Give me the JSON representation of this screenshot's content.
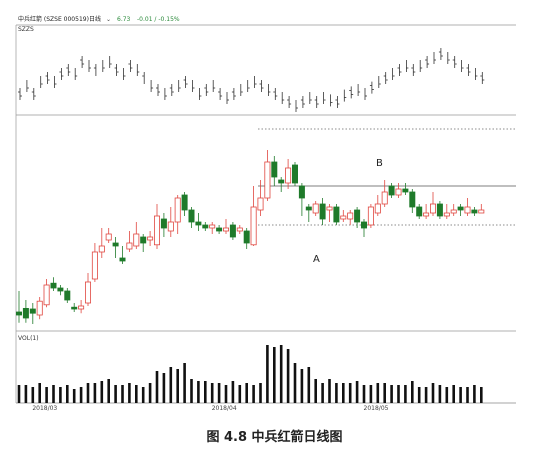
{
  "header": {
    "stock_label": "中兵红箭 (SZSE 000519)",
    "period": "日线",
    "price": "6.73",
    "change": "-0.01 / -0.15%"
  },
  "caption": "图 4.8  中兵红箭日线图",
  "chart_data": {
    "type": "candlestick",
    "title": "",
    "panels": {
      "sz": {
        "label": "SZZS",
        "bars": [
          [
            1,
            0,
            1,
            1
          ],
          [
            0,
            1,
            1,
            0
          ],
          [
            1,
            0,
            1,
            0
          ],
          [
            0,
            1,
            1,
            0
          ],
          [
            1,
            0,
            1,
            0
          ],
          [
            0,
            1,
            1,
            0
          ],
          [
            1,
            0,
            1,
            0
          ],
          [
            1,
            0,
            1,
            1
          ],
          [
            0,
            1,
            1,
            0
          ],
          [
            1,
            0,
            1,
            1
          ],
          [
            0,
            0,
            1,
            1
          ],
          [
            1,
            0,
            0,
            1
          ],
          [
            0,
            1,
            1,
            0
          ],
          [
            0,
            1,
            1,
            0
          ],
          [
            1,
            0,
            1,
            0
          ],
          [
            0,
            1,
            1,
            0
          ],
          [
            1,
            0,
            1,
            1
          ],
          [
            0,
            0,
            1,
            1
          ],
          [
            1,
            0,
            0,
            0
          ],
          [
            0,
            1,
            1,
            0
          ],
          [
            1,
            0,
            1,
            0
          ],
          [
            0,
            1,
            1,
            0
          ],
          [
            1,
            0,
            1,
            0
          ],
          [
            0,
            1,
            1,
            0
          ],
          [
            1,
            0,
            1,
            1
          ],
          [
            0,
            0,
            1,
            1
          ],
          [
            0,
            1,
            1,
            0
          ],
          [
            1,
            0,
            1,
            0
          ],
          [
            0,
            1,
            1,
            0
          ],
          [
            1,
            0,
            1,
            0
          ],
          [
            0,
            1,
            1,
            0
          ],
          [
            1,
            0,
            1,
            1
          ],
          [
            0,
            0,
            1,
            1
          ],
          [
            0,
            1,
            1,
            0
          ],
          [
            0,
            1,
            1,
            0
          ],
          [
            1,
            0,
            1,
            0
          ],
          [
            0,
            1,
            1,
            0
          ],
          [
            1,
            0,
            1,
            1
          ],
          [
            0,
            0,
            1,
            1
          ],
          [
            1,
            0,
            1,
            0
          ],
          [
            0,
            1,
            1,
            0
          ],
          [
            1,
            0,
            1,
            0
          ],
          [
            0,
            1,
            1,
            0
          ],
          [
            1,
            0,
            1,
            0
          ],
          [
            0,
            1,
            1,
            1
          ],
          [
            0,
            0,
            1,
            1
          ],
          [
            1,
            0,
            1,
            0
          ],
          [
            0,
            1,
            1,
            0
          ],
          [
            1,
            0,
            1,
            0
          ],
          [
            0,
            1,
            1,
            1
          ],
          [
            0,
            0,
            1,
            1
          ],
          [
            1,
            0,
            1,
            0
          ],
          [
            0,
            1,
            1,
            0
          ],
          [
            1,
            0,
            1,
            0
          ],
          [
            0,
            1,
            1,
            0
          ],
          [
            1,
            0,
            1,
            0
          ],
          [
            0,
            1,
            1,
            0
          ],
          [
            1,
            0,
            1,
            1
          ],
          [
            0,
            0,
            1,
            1
          ],
          [
            1,
            0,
            1,
            0
          ],
          [
            0,
            1,
            1,
            0
          ],
          [
            1,
            0,
            1,
            0
          ],
          [
            0,
            1,
            1,
            0
          ],
          [
            1,
            0,
            1,
            0
          ],
          [
            0,
            1,
            1,
            0
          ],
          [
            1,
            0,
            1,
            0
          ],
          [
            0,
            1,
            1,
            0
          ],
          [
            1,
            0,
            1,
            0
          ]
        ]
      },
      "candles": {
        "annotations": [
          {
            "text": "A"
          },
          {
            "text": "B"
          }
        ],
        "levels": {
          "top_dotted": 7.85,
          "resistance_solid": 6.9,
          "support_dotted": 6.25
        },
        "ylim": [
          4.5,
          8.0
        ],
        "ohlc": [
          [
            4.8,
            4.75,
            5.15,
            4.62
          ],
          [
            4.86,
            4.7,
            5.0,
            4.62
          ],
          [
            4.85,
            4.78,
            4.95,
            4.6
          ],
          [
            4.75,
            4.98,
            5.05,
            4.68
          ],
          [
            4.92,
            5.25,
            5.35,
            4.88
          ],
          [
            5.28,
            5.2,
            5.38,
            5.15
          ],
          [
            5.2,
            5.15,
            5.25,
            5.08
          ],
          [
            5.15,
            5.0,
            5.2,
            4.95
          ],
          [
            4.88,
            4.85,
            4.95,
            4.8
          ],
          [
            4.85,
            4.9,
            5.0,
            4.78
          ],
          [
            4.95,
            5.3,
            5.45,
            4.9
          ],
          [
            5.35,
            5.8,
            5.95,
            5.3
          ],
          [
            5.8,
            5.9,
            6.2,
            5.7
          ],
          [
            6.0,
            6.1,
            6.2,
            5.95
          ],
          [
            5.95,
            5.9,
            6.05,
            5.7
          ],
          [
            5.7,
            5.65,
            5.9,
            5.6
          ],
          [
            5.85,
            5.95,
            6.15,
            5.8
          ],
          [
            5.9,
            6.1,
            6.3,
            5.85
          ],
          [
            6.05,
            5.95,
            6.1,
            5.8
          ],
          [
            6.0,
            6.05,
            6.15,
            5.9
          ],
          [
            5.92,
            6.4,
            6.6,
            5.85
          ],
          [
            6.35,
            6.2,
            6.45,
            6.05
          ],
          [
            6.15,
            6.3,
            6.55,
            6.05
          ],
          [
            6.3,
            6.7,
            6.75,
            6.1
          ],
          [
            6.75,
            6.5,
            6.8,
            6.4
          ],
          [
            6.5,
            6.3,
            6.55,
            6.2
          ],
          [
            6.3,
            6.25,
            6.45,
            6.15
          ],
          [
            6.25,
            6.2,
            6.3,
            6.15
          ],
          [
            6.2,
            6.25,
            6.3,
            6.1
          ],
          [
            6.2,
            6.15,
            6.25,
            6.1
          ],
          [
            6.15,
            6.2,
            6.35,
            6.1
          ],
          [
            6.25,
            6.05,
            6.3,
            6.0
          ],
          [
            6.15,
            6.2,
            6.25,
            6.1
          ],
          [
            6.15,
            5.95,
            6.2,
            5.85
          ],
          [
            5.92,
            6.55,
            6.9,
            5.9
          ],
          [
            6.5,
            6.7,
            7.0,
            6.4
          ],
          [
            6.7,
            7.3,
            7.5,
            6.65
          ],
          [
            7.3,
            7.05,
            7.4,
            6.9
          ],
          [
            7.0,
            6.95,
            7.05,
            6.8
          ],
          [
            6.95,
            7.2,
            7.35,
            6.85
          ],
          [
            7.25,
            6.95,
            7.3,
            6.9
          ],
          [
            6.9,
            6.7,
            6.95,
            6.4
          ],
          [
            6.55,
            6.5,
            6.6,
            6.3
          ],
          [
            6.45,
            6.6,
            6.65,
            6.4
          ],
          [
            6.6,
            6.35,
            6.7,
            6.25
          ],
          [
            6.5,
            6.55,
            6.6,
            6.3
          ],
          [
            6.55,
            6.3,
            6.6,
            6.25
          ],
          [
            6.35,
            6.4,
            6.5,
            6.3
          ],
          [
            6.35,
            6.45,
            6.5,
            6.25
          ],
          [
            6.5,
            6.3,
            6.55,
            6.2
          ],
          [
            6.3,
            6.2,
            6.35,
            6.05
          ],
          [
            6.25,
            6.55,
            6.6,
            6.2
          ],
          [
            6.45,
            6.6,
            6.75,
            6.4
          ],
          [
            6.6,
            6.8,
            7.0,
            6.55
          ],
          [
            6.9,
            6.75,
            6.95,
            6.7
          ],
          [
            6.75,
            6.85,
            6.95,
            6.7
          ],
          [
            6.85,
            6.8,
            6.95,
            6.75
          ],
          [
            6.8,
            6.55,
            6.85,
            6.45
          ],
          [
            6.55,
            6.4,
            6.6,
            6.35
          ],
          [
            6.4,
            6.45,
            6.6,
            6.35
          ],
          [
            6.45,
            6.6,
            6.8,
            6.4
          ],
          [
            6.6,
            6.4,
            6.65,
            6.35
          ],
          [
            6.4,
            6.45,
            6.6,
            6.35
          ],
          [
            6.45,
            6.5,
            6.6,
            6.4
          ],
          [
            6.55,
            6.5,
            6.6,
            6.4
          ],
          [
            6.45,
            6.55,
            6.7,
            6.4
          ],
          [
            6.5,
            6.45,
            6.55,
            6.4
          ],
          [
            6.45,
            6.5,
            6.6,
            6.45
          ]
        ]
      },
      "volume": {
        "label": "VOL(1)",
        "values": [
          9,
          9,
          8,
          10,
          8,
          9,
          8,
          9,
          7,
          8,
          10,
          10,
          11,
          12,
          9,
          9,
          10,
          9,
          8,
          10,
          16,
          15,
          18,
          17,
          20,
          12,
          11,
          11,
          10,
          10,
          9,
          11,
          9,
          10,
          9,
          10,
          29,
          28,
          29,
          27,
          20,
          17,
          18,
          12,
          10,
          12,
          10,
          10,
          10,
          11,
          9,
          9,
          10,
          10,
          9,
          9,
          9,
          11,
          8,
          8,
          10,
          9,
          8,
          9,
          8,
          8,
          9,
          8
        ]
      }
    },
    "x_ticks": [
      {
        "index": 2,
        "label": "2018/03"
      },
      {
        "index": 28,
        "label": "2018/04"
      },
      {
        "index": 50,
        "label": "2018/05"
      }
    ],
    "colors": {
      "up": "#e0463f",
      "down": "#1f7a2a",
      "volume": "#111111",
      "sz_bar": "#333333",
      "grid": "#888888",
      "header_price": "#2a8a3a",
      "header_change": "#2a8a3a"
    }
  }
}
